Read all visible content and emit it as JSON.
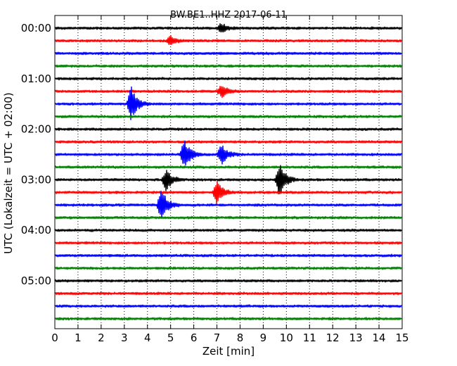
{
  "chart_data": {
    "type": "line",
    "title": "BW.BE1..HHZ 2017-06-11",
    "xlabel": "Zeit  [min]",
    "ylabel": "UTC (Lokalzeit = UTC + 02:00)",
    "xlim": [
      0,
      15
    ],
    "x_ticks": [
      "0",
      "1",
      "2",
      "3",
      "4",
      "5",
      "6",
      "7",
      "8",
      "9",
      "10",
      "11",
      "12",
      "13",
      "14",
      "15"
    ],
    "y_ticks": [
      "00:00",
      "01:00",
      "02:00",
      "03:00",
      "04:00",
      "05:00"
    ],
    "grid": "vertical dotted",
    "colors": [
      "#000000",
      "#ff0000",
      "#0000ff",
      "#008000"
    ],
    "trace_interval_min": 15,
    "traces": [
      {
        "time": "00:00",
        "color": "#000000",
        "events": [
          {
            "t": 7.2,
            "amp": 0.45
          }
        ]
      },
      {
        "time": "00:15",
        "color": "#ff0000",
        "events": [
          {
            "t": 5.0,
            "amp": 0.4
          }
        ]
      },
      {
        "time": "00:30",
        "color": "#0000ff",
        "events": []
      },
      {
        "time": "00:45",
        "color": "#008000",
        "events": []
      },
      {
        "time": "01:00",
        "color": "#000000",
        "events": []
      },
      {
        "time": "01:15",
        "color": "#ff0000",
        "events": [
          {
            "t": 7.2,
            "amp": 0.6
          }
        ]
      },
      {
        "time": "01:30",
        "color": "#0000ff",
        "events": [
          {
            "t": 3.3,
            "amp": 1.5
          }
        ]
      },
      {
        "time": "01:45",
        "color": "#008000",
        "events": []
      },
      {
        "time": "02:00",
        "color": "#000000",
        "events": []
      },
      {
        "time": "02:15",
        "color": "#ff0000",
        "events": []
      },
      {
        "time": "02:30",
        "color": "#0000ff",
        "events": [
          {
            "t": 5.6,
            "amp": 1.4
          },
          {
            "t": 7.2,
            "amp": 0.9
          }
        ]
      },
      {
        "time": "02:45",
        "color": "#008000",
        "events": []
      },
      {
        "time": "03:00",
        "color": "#000000",
        "events": [
          {
            "t": 4.8,
            "amp": 1.0
          },
          {
            "t": 9.7,
            "amp": 1.6
          }
        ]
      },
      {
        "time": "03:15",
        "color": "#ff0000",
        "events": [
          {
            "t": 7.0,
            "amp": 1.0
          }
        ]
      },
      {
        "time": "03:30",
        "color": "#0000ff",
        "events": [
          {
            "t": 4.6,
            "amp": 1.6
          }
        ]
      },
      {
        "time": "03:45",
        "color": "#008000",
        "events": []
      },
      {
        "time": "04:00",
        "color": "#000000",
        "events": []
      },
      {
        "time": "04:15",
        "color": "#ff0000",
        "events": []
      },
      {
        "time": "04:30",
        "color": "#0000ff",
        "events": []
      },
      {
        "time": "04:45",
        "color": "#008000",
        "events": []
      },
      {
        "time": "05:00",
        "color": "#000000",
        "events": []
      },
      {
        "time": "05:15",
        "color": "#ff0000",
        "events": []
      },
      {
        "time": "05:30",
        "color": "#0000ff",
        "events": []
      },
      {
        "time": "05:45",
        "color": "#008000",
        "events": []
      }
    ]
  }
}
